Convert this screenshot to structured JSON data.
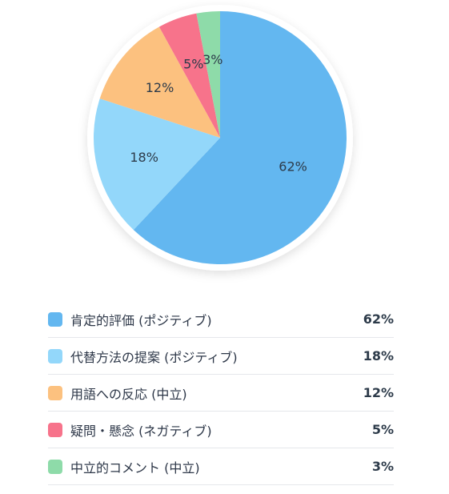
{
  "chart_data": {
    "type": "pie",
    "categories": [
      "肯定的評価 (ポジティブ)",
      "代替方法の提案 (ポジティブ)",
      "用語への反応 (中立)",
      "疑問・懸念 (ネガティブ)",
      "中立的コメント (中立)"
    ],
    "values": [
      62,
      18,
      12,
      5,
      3
    ],
    "labels": [
      "62%",
      "18%",
      "12%",
      "5%",
      "3%"
    ],
    "colors": [
      "#63b7f0",
      "#93d7fa",
      "#fcc17f",
      "#f7738b",
      "#8edba9"
    ],
    "legend_position": "bottom"
  },
  "legend": {
    "items": [
      {
        "label": "肯定的評価 (ポジティブ)",
        "value": "62%",
        "color": "#63b7f0"
      },
      {
        "label": "代替方法の提案 (ポジティブ)",
        "value": "18%",
        "color": "#93d7fa"
      },
      {
        "label": "用語への反応 (中立)",
        "value": "12%",
        "color": "#fcc17f"
      },
      {
        "label": "疑問・懸念 (ネガティブ)",
        "value": "5%",
        "color": "#f7738b"
      },
      {
        "label": "中立的コメント (中立)",
        "value": "3%",
        "color": "#8edba9"
      }
    ]
  }
}
